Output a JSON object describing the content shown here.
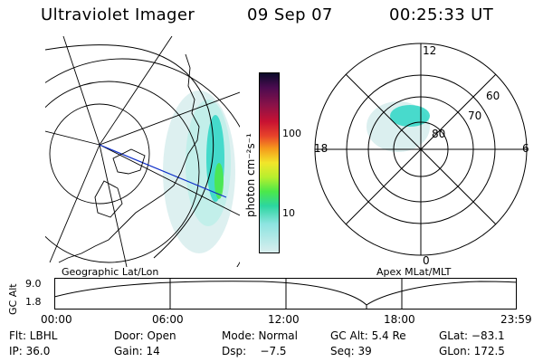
{
  "header": {
    "title": "Ultraviolet Imager",
    "date": "09 Sep 07",
    "time": "00:25:33 UT"
  },
  "geo_panel": {
    "label": "Geographic Lat/Lon"
  },
  "apex_panel": {
    "label": "Apex MLat/MLT",
    "mlt_labels": [
      "12",
      "18",
      "6",
      "0"
    ],
    "lat_labels": [
      "60",
      "70",
      "80"
    ]
  },
  "colorbar": {
    "unit_label": "photon cm⁻²s⁻¹",
    "ticks": [
      "100",
      "10"
    ],
    "colors": [
      "#0b0b2a",
      "#4b0b50",
      "#8c1248",
      "#c81232",
      "#e8442a",
      "#f59a1c",
      "#f2e62a",
      "#b7ef2e",
      "#4be84a",
      "#2cd6a0",
      "#8de4e0",
      "#d9eeee"
    ]
  },
  "altitude_plot": {
    "ylabel": "GC Alt",
    "yticks": [
      "9.0",
      "1.8"
    ],
    "xticks": [
      "00:00",
      "06:00",
      "12:00",
      "18:00",
      "23:59"
    ]
  },
  "info_rows": [
    [
      "Flt: LBHL",
      "Door: Open",
      "Mode: Normal",
      "GC Alt: 5.4 Re",
      "GLat: −83.1"
    ],
    [
      "IP: 36.0",
      "Gain: 14",
      "Dsp:    −7.5",
      "Seq: 39",
      "GLon: 172.5"
    ]
  ],
  "colors": {
    "aurora_cyan": "#2ed6c6",
    "aurora_light": "#bfeee9",
    "aurora_green": "#4be84a",
    "track_blue": "#1030c8"
  }
}
